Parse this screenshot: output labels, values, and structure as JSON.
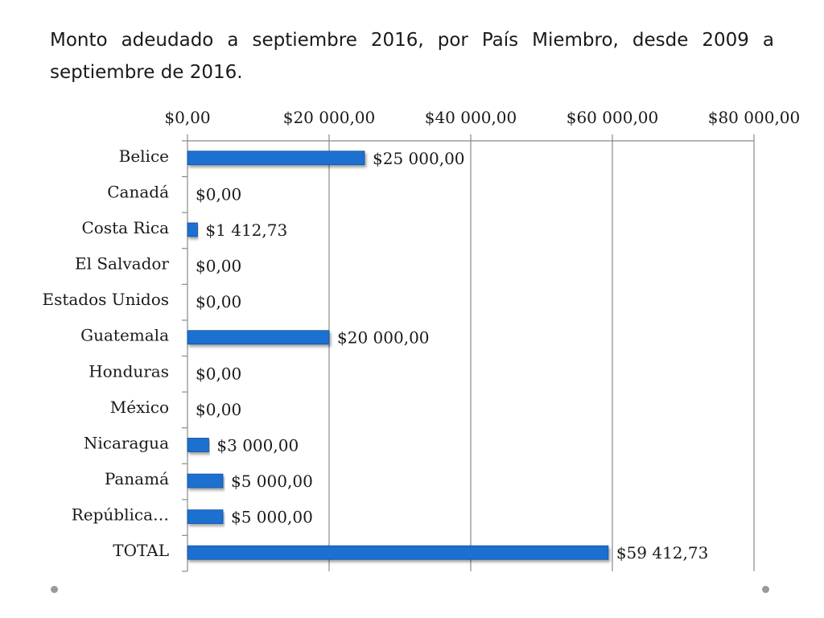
{
  "title": "Monto adeudado a septiembre 2016, por País Miembro, desde 2009 a septiembre de 2016.",
  "colors": {
    "bar": "#1f6fcf",
    "bar_edge": "#0e4f9e",
    "grid": "#8a8a8a",
    "dot": "#9a9a9a"
  },
  "chart_data": {
    "type": "bar",
    "orientation": "horizontal",
    "title": "Monto adeudado a septiembre 2016, por País Miembro, desde 2009 a septiembre de 2016.",
    "categories": [
      "Belice",
      "Canadá",
      "Costa Rica",
      "El Salvador",
      "Estados Unidos",
      "Guatemala",
      "Honduras",
      "México",
      "Nicaragua",
      "Panamá",
      "República…",
      "TOTAL"
    ],
    "values": [
      25000,
      0,
      1412.73,
      0,
      0,
      20000,
      0,
      0,
      3000,
      5000,
      5000,
      59412.73
    ],
    "data_labels": [
      "$25 000,00",
      "$0,00",
      "$1 412,73",
      "$0,00",
      "$0,00",
      "$20 000,00",
      "$0,00",
      "$0,00",
      "$3 000,00",
      "$5 000,00",
      "$5 000,00",
      "$59 412,73"
    ],
    "x_ticks": [
      0,
      20000,
      40000,
      60000,
      80000
    ],
    "x_tick_labels": [
      "$0,00",
      "$20 000,00",
      "$40 000,00",
      "$60 000,00",
      "$80 000,00"
    ],
    "xlim": [
      0,
      80000
    ],
    "x_axis_position": "top",
    "grid": true,
    "legend": "none"
  }
}
